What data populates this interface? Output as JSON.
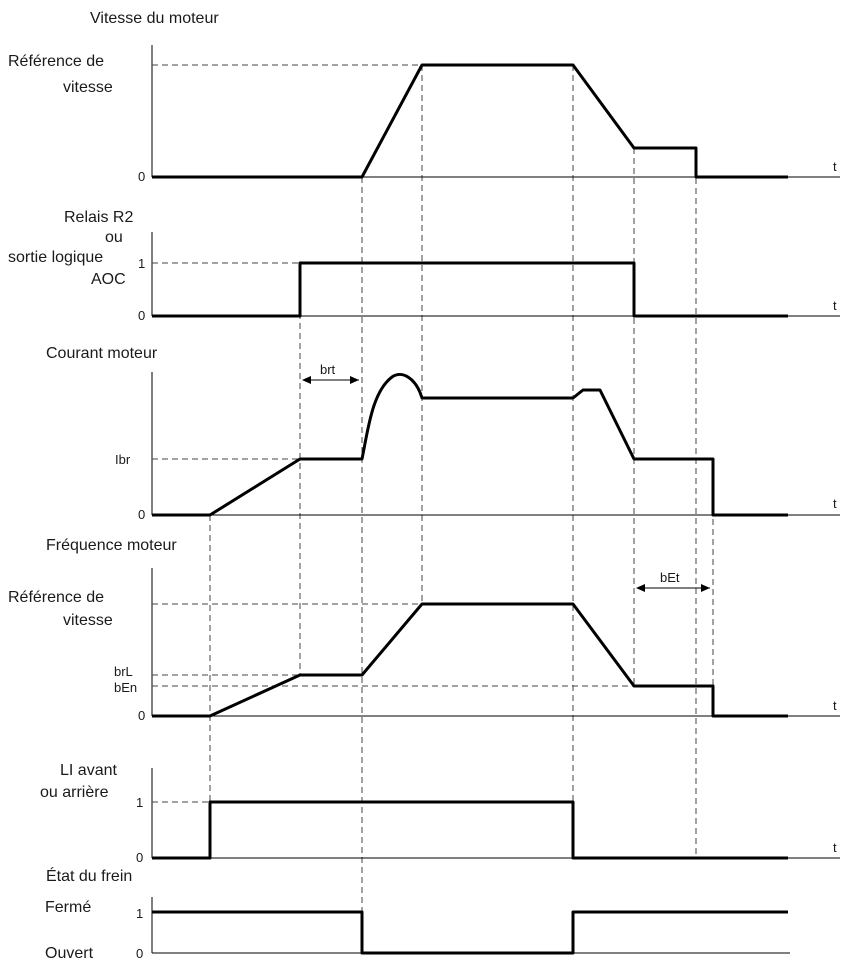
{
  "panels": {
    "speed": {
      "title": "Vitesse du moteur",
      "ref_line1": "Référence de",
      "ref_line2": "vitesse",
      "zero": "0",
      "t": "t"
    },
    "relay": {
      "title_line1": "Relais R2",
      "title_line2": "ou",
      "title_line3": "sortie logique",
      "title_line4": "AOC",
      "one": "1",
      "zero": "0",
      "t": "t"
    },
    "current": {
      "title": "Courant moteur",
      "ibr": "Ibr",
      "zero": "0",
      "t": "t",
      "brt": "brt"
    },
    "frequency": {
      "title": "Fréquence moteur",
      "ref_line1": "Référence de",
      "ref_line2": "vitesse",
      "brl": "brL",
      "ben": "bEn",
      "zero": "0",
      "t": "t",
      "bet": "bEt"
    },
    "li": {
      "title_line1": "LI avant",
      "title_line2": "ou arrière",
      "one": "1",
      "zero": "0",
      "t": "t"
    },
    "brake": {
      "title": "État du frein",
      "closed": "Fermé",
      "open": "Ouvert",
      "one": "1",
      "zero": "0"
    }
  }
}
